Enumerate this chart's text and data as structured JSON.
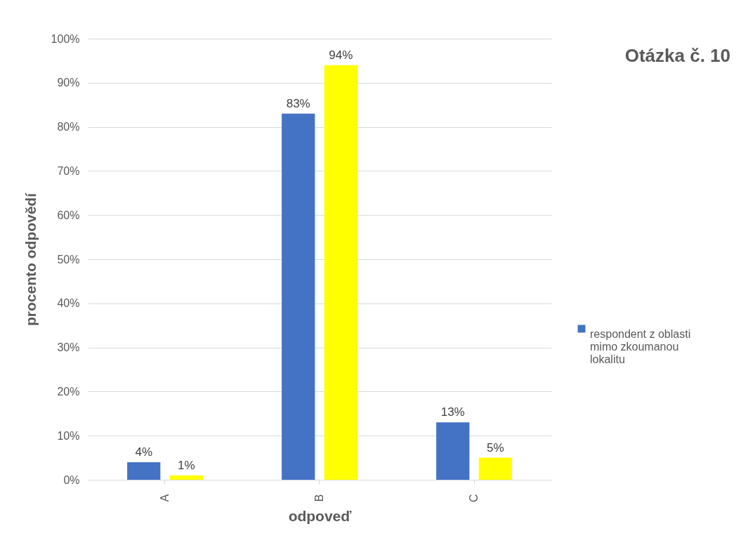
{
  "chart_data": {
    "type": "bar",
    "title": "Otázka č. 10",
    "xlabel": "odpoveď",
    "ylabel": "procento odpovědí",
    "categories": [
      "A",
      "B",
      "C"
    ],
    "series": [
      {
        "name": "respondent z oblasti mimo zkoumanou lokalitu",
        "color": "#4472c4",
        "values": [
          4,
          83,
          13
        ],
        "value_labels": [
          "4%",
          "83%",
          "13%"
        ]
      },
      {
        "color": "#ffff00",
        "values": [
          1,
          94,
          5
        ],
        "value_labels": [
          "1%",
          "94%",
          "5%"
        ]
      }
    ],
    "ylim": [
      0,
      100
    ],
    "yticks": [
      {
        "value": 0,
        "label": "0%"
      },
      {
        "value": 10,
        "label": "10%"
      },
      {
        "value": 20,
        "label": "20%"
      },
      {
        "value": 30,
        "label": "30%"
      },
      {
        "value": 40,
        "label": "40%"
      },
      {
        "value": 50,
        "label": "50%"
      },
      {
        "value": 60,
        "label": "60%"
      },
      {
        "value": 70,
        "label": "70%"
      },
      {
        "value": 80,
        "label": "80%"
      },
      {
        "value": 90,
        "label": "90%"
      },
      {
        "value": 100,
        "label": "100%"
      }
    ],
    "grid": "y",
    "legend": "right"
  }
}
